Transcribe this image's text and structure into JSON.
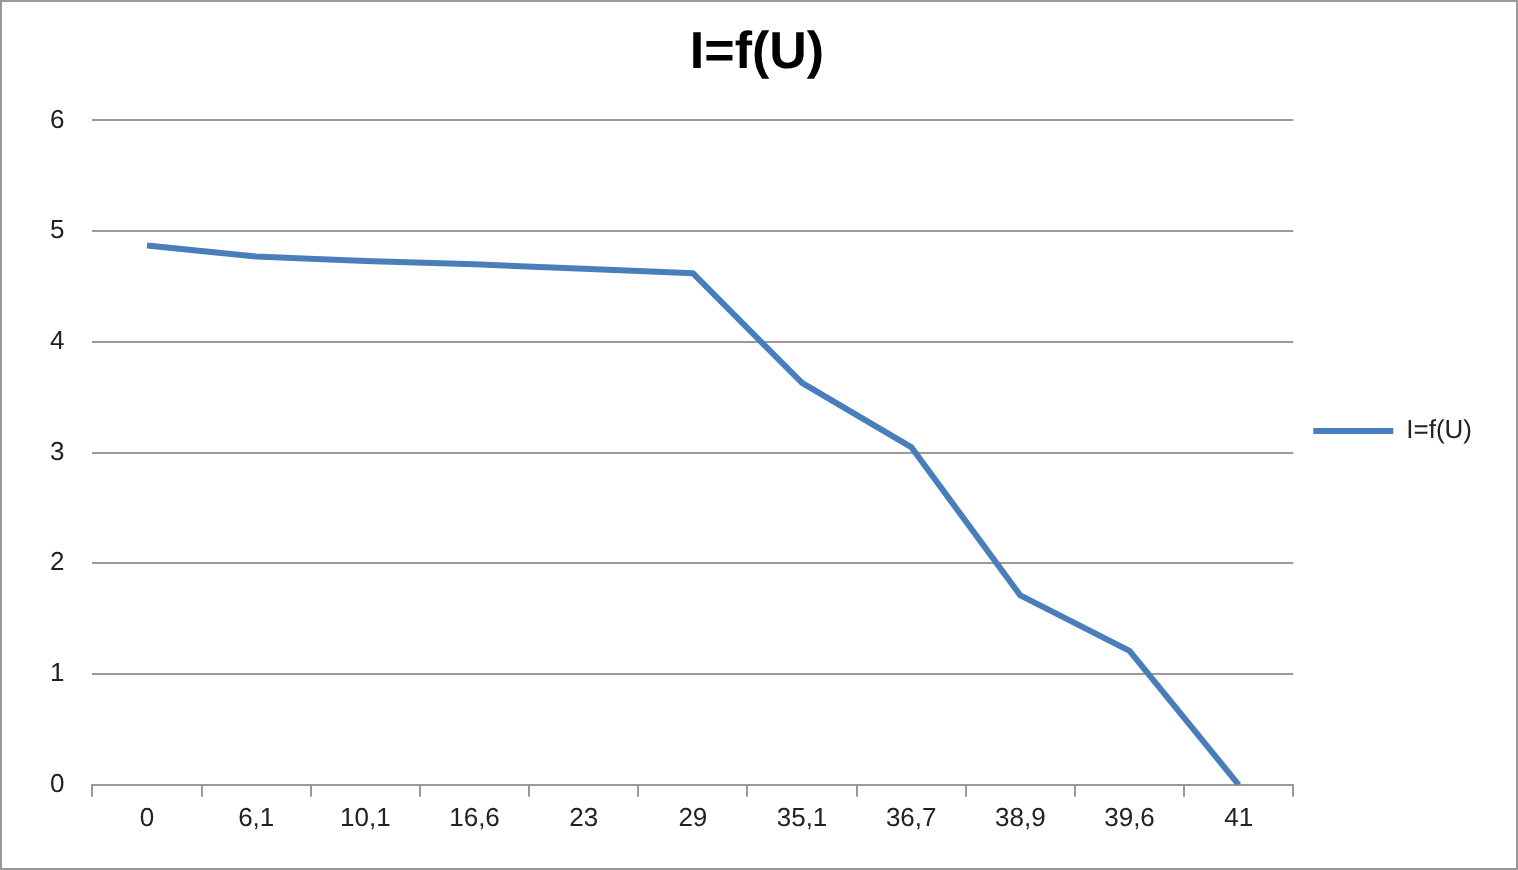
{
  "chart_data": {
    "type": "line",
    "title": "I=f(U)",
    "categories": [
      "0",
      "6,1",
      "10,1",
      "16,6",
      "23",
      "29",
      "35,1",
      "36,7",
      "38,9",
      "39,6",
      "41"
    ],
    "series": [
      {
        "name": "I=f(U)",
        "color": "#4a7ebb",
        "values": [
          4.87,
          4.77,
          4.73,
          4.7,
          4.66,
          4.62,
          3.63,
          3.05,
          1.71,
          1.21,
          0
        ]
      }
    ],
    "ylim": [
      0,
      6
    ],
    "yticks": [
      0,
      1,
      2,
      3,
      4,
      5,
      6
    ],
    "grid": "y",
    "legend": "right",
    "marker": "none",
    "line_style": "solid"
  }
}
